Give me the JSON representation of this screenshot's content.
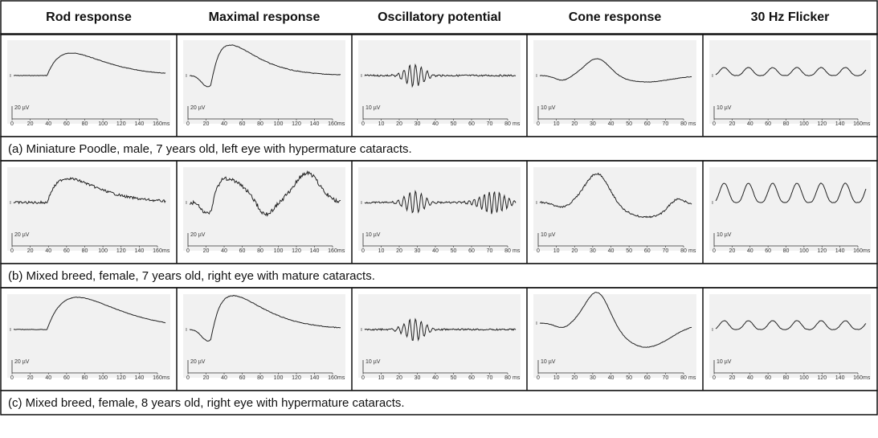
{
  "columns": [
    {
      "title": "Rod response",
      "scale": "20 µV",
      "x_ticks": [
        0,
        20,
        40,
        60,
        80,
        100,
        120,
        140,
        160
      ],
      "x_unit": "ms"
    },
    {
      "title": "Maximal response",
      "scale": "20 µV",
      "x_ticks": [
        0,
        20,
        40,
        60,
        80,
        100,
        120,
        140,
        160
      ],
      "x_unit": "ms"
    },
    {
      "title": "Oscillatory potential",
      "scale": "10 µV",
      "x_ticks": [
        0,
        10,
        20,
        30,
        40,
        50,
        60,
        70,
        80
      ],
      "x_unit": "ms"
    },
    {
      "title": "Cone response",
      "scale": "10 µV",
      "x_ticks": [
        0,
        10,
        20,
        30,
        40,
        50,
        60,
        70,
        80
      ],
      "x_unit": "ms"
    },
    {
      "title": "30 Hz Flicker",
      "scale": "10 µV",
      "x_ticks": [
        0,
        20,
        40,
        60,
        80,
        100,
        120,
        140,
        160
      ],
      "x_unit": "ms"
    }
  ],
  "rows": [
    {
      "caption": "(a) Miniature Poodle, male, 7 years old, left eye with hypermature cataracts."
    },
    {
      "caption": "(b) Mixed breed, female, 7 years old, right eye with mature cataracts."
    },
    {
      "caption": "(c) Mixed breed, female, 8 years old, right eye with hypermature cataracts."
    }
  ]
}
